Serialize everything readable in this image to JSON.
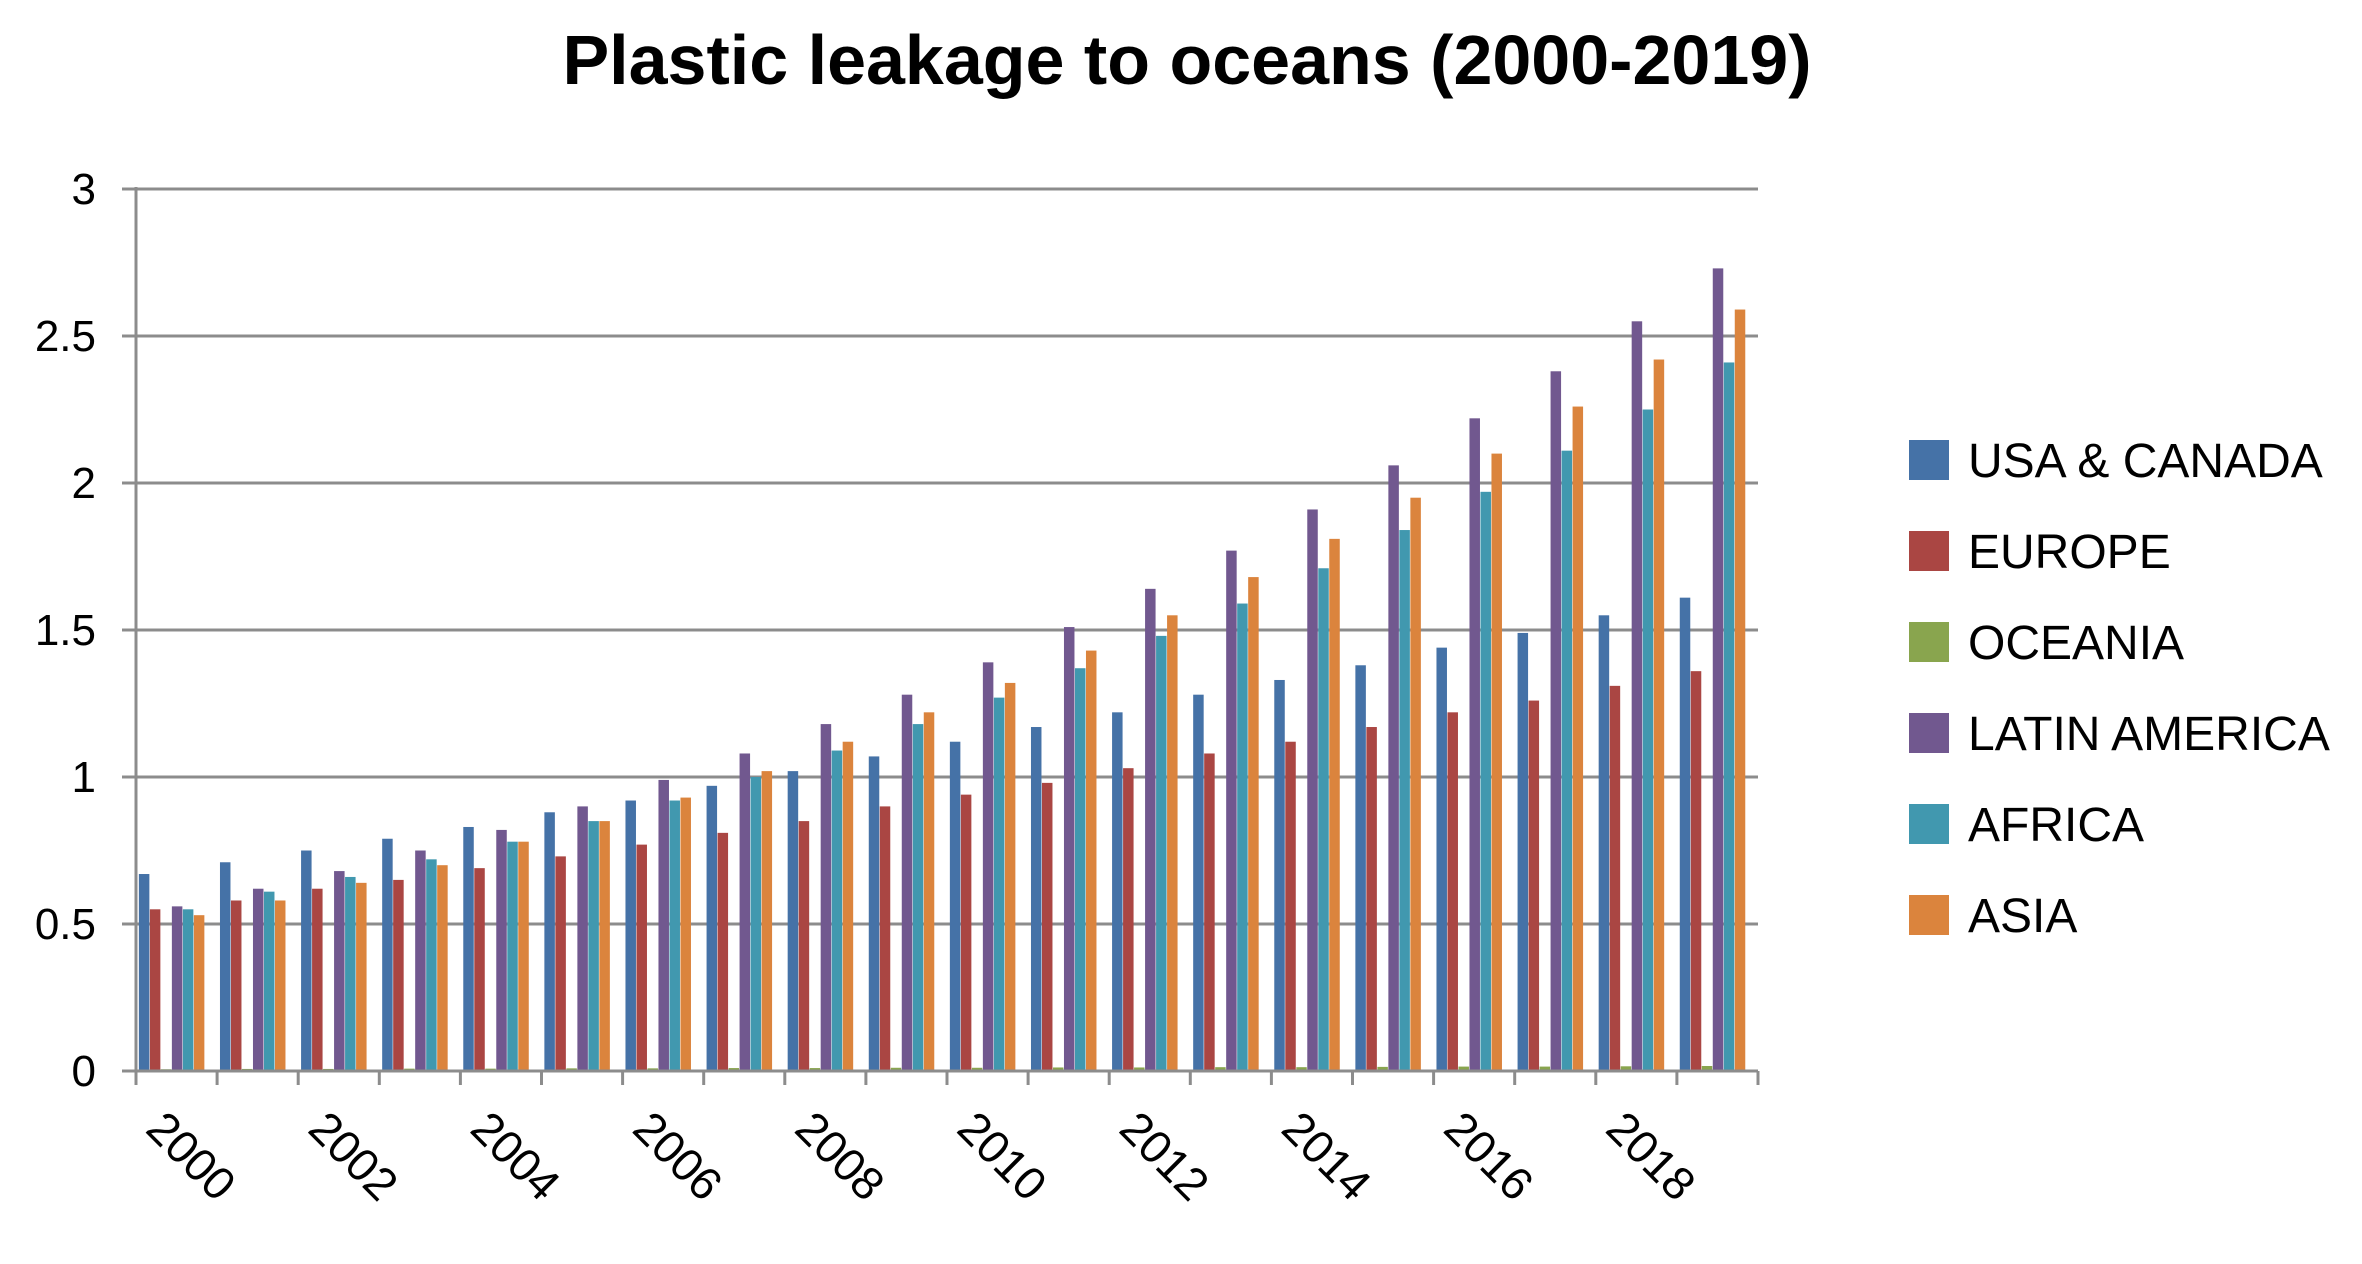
{
  "chart_data": {
    "type": "bar",
    "title": "Plastic leakage to oceans (2000-2019)",
    "xlabel": "",
    "ylabel": "",
    "ylim": [
      0,
      3
    ],
    "yticks": [
      "0",
      "0.5",
      "1",
      "1.5",
      "2",
      "2.5",
      "3"
    ],
    "categories": [
      "2000",
      "2001",
      "2002",
      "2003",
      "2004",
      "2005",
      "2006",
      "2007",
      "2008",
      "2009",
      "2010",
      "2011",
      "2012",
      "2013",
      "2014",
      "2015",
      "2016",
      "2017",
      "2018",
      "2019"
    ],
    "xtick_labels": [
      "2000",
      "2002",
      "2004",
      "2006",
      "2008",
      "2010",
      "2012",
      "2014",
      "2016",
      "2018"
    ],
    "grid": "horizontal",
    "legend_position": "right",
    "series": [
      {
        "name": "USA & CANADA",
        "color": "#4572A7",
        "values": [
          0.67,
          0.71,
          0.75,
          0.79,
          0.83,
          0.88,
          0.92,
          0.97,
          1.02,
          1.07,
          1.12,
          1.17,
          1.22,
          1.28,
          1.33,
          1.38,
          1.44,
          1.49,
          1.55,
          1.61
        ]
      },
      {
        "name": "EUROPE",
        "color": "#AA4643",
        "values": [
          0.55,
          0.58,
          0.62,
          0.65,
          0.69,
          0.73,
          0.77,
          0.81,
          0.85,
          0.9,
          0.94,
          0.98,
          1.03,
          1.08,
          1.12,
          1.17,
          1.22,
          1.26,
          1.31,
          1.36
        ]
      },
      {
        "name": "OCEANIA",
        "color": "#89A54E",
        "values": [
          0.006,
          0.007,
          0.007,
          0.008,
          0.008,
          0.009,
          0.009,
          0.01,
          0.01,
          0.011,
          0.011,
          0.012,
          0.012,
          0.013,
          0.013,
          0.014,
          0.015,
          0.015,
          0.016,
          0.017
        ]
      },
      {
        "name": "LATIN AMERICA",
        "color": "#71588F",
        "values": [
          0.56,
          0.62,
          0.68,
          0.75,
          0.82,
          0.9,
          0.99,
          1.08,
          1.18,
          1.28,
          1.39,
          1.51,
          1.64,
          1.77,
          1.91,
          2.06,
          2.22,
          2.38,
          2.55,
          2.73
        ]
      },
      {
        "name": "AFRICA",
        "color": "#4198AF",
        "values": [
          0.55,
          0.61,
          0.66,
          0.72,
          0.78,
          0.85,
          0.92,
          1.0,
          1.09,
          1.18,
          1.27,
          1.37,
          1.48,
          1.59,
          1.71,
          1.84,
          1.97,
          2.11,
          2.25,
          2.41
        ]
      },
      {
        "name": "ASIA",
        "color": "#DB843D",
        "values": [
          0.53,
          0.58,
          0.64,
          0.7,
          0.78,
          0.85,
          0.93,
          1.02,
          1.12,
          1.22,
          1.32,
          1.43,
          1.55,
          1.68,
          1.81,
          1.95,
          2.1,
          2.26,
          2.42,
          2.59
        ]
      }
    ]
  }
}
